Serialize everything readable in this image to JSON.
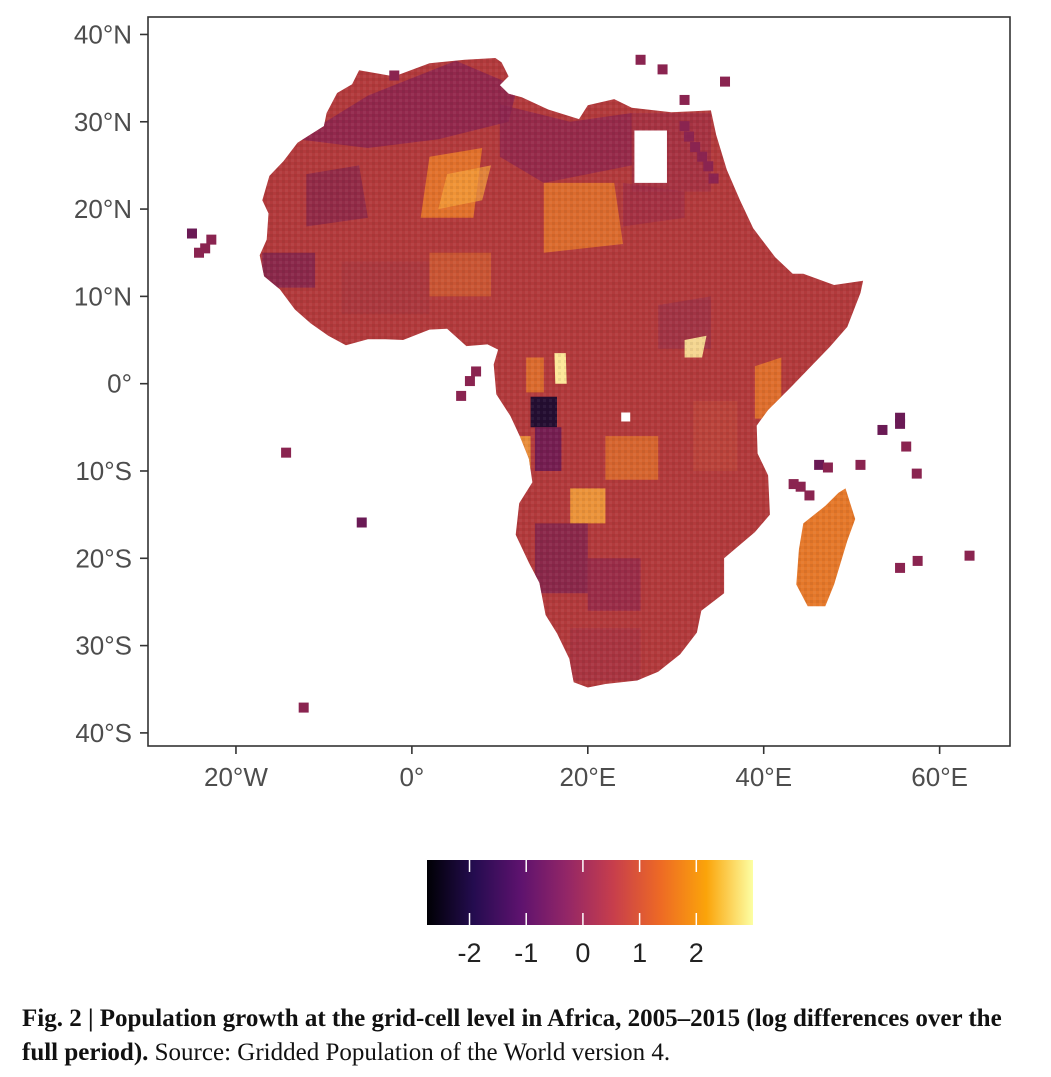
{
  "figure": {
    "caption_bold": "Fig. 2 | Population growth at the grid-cell level in Africa, 2005–2015 (log differences over the full period).",
    "caption_normal": " Source: Gridded Population of the World version 4."
  },
  "map": {
    "x_ticks": [
      {
        "lon": -20,
        "label": "20°W"
      },
      {
        "lon": 0,
        "label": "0°"
      },
      {
        "lon": 20,
        "label": "20°E"
      },
      {
        "lon": 40,
        "label": "40°E"
      },
      {
        "lon": 60,
        "label": "60°E"
      }
    ],
    "y_ticks": [
      {
        "lat": 40,
        "label": "40°N"
      },
      {
        "lat": 30,
        "label": "30°N"
      },
      {
        "lat": 20,
        "label": "20°N"
      },
      {
        "lat": 10,
        "label": "10°N"
      },
      {
        "lat": 0,
        "label": "0°"
      },
      {
        "lat": -10,
        "label": "10°S"
      },
      {
        "lat": -20,
        "label": "20°S"
      },
      {
        "lat": -30,
        "label": "30°S"
      },
      {
        "lat": -40,
        "label": "40°S"
      }
    ],
    "lon_range": [
      -30,
      68
    ],
    "lat_range": [
      -41.5,
      42
    ],
    "base_color": "#b23a3c",
    "colors": {
      "dark": "#1c0c30",
      "purple": "#6a1a55",
      "plum": "#8a2450",
      "red": "#b8403a",
      "orange": "#e5782a",
      "light_orange": "#f5a33a",
      "yellow": "#fde89a"
    }
  },
  "legend": {
    "range": [
      -2.75,
      3
    ],
    "ticks": [
      {
        "value": -2,
        "label": "-2"
      },
      {
        "value": -1,
        "label": "-1"
      },
      {
        "value": 0,
        "label": "0"
      },
      {
        "value": 1,
        "label": "1"
      },
      {
        "value": 2,
        "label": "2"
      }
    ],
    "gradient": [
      "#000004",
      "#240c4f",
      "#5d126e",
      "#932667",
      "#c73e4c",
      "#ed6925",
      "#fba40a",
      "#fcffa4"
    ]
  }
}
